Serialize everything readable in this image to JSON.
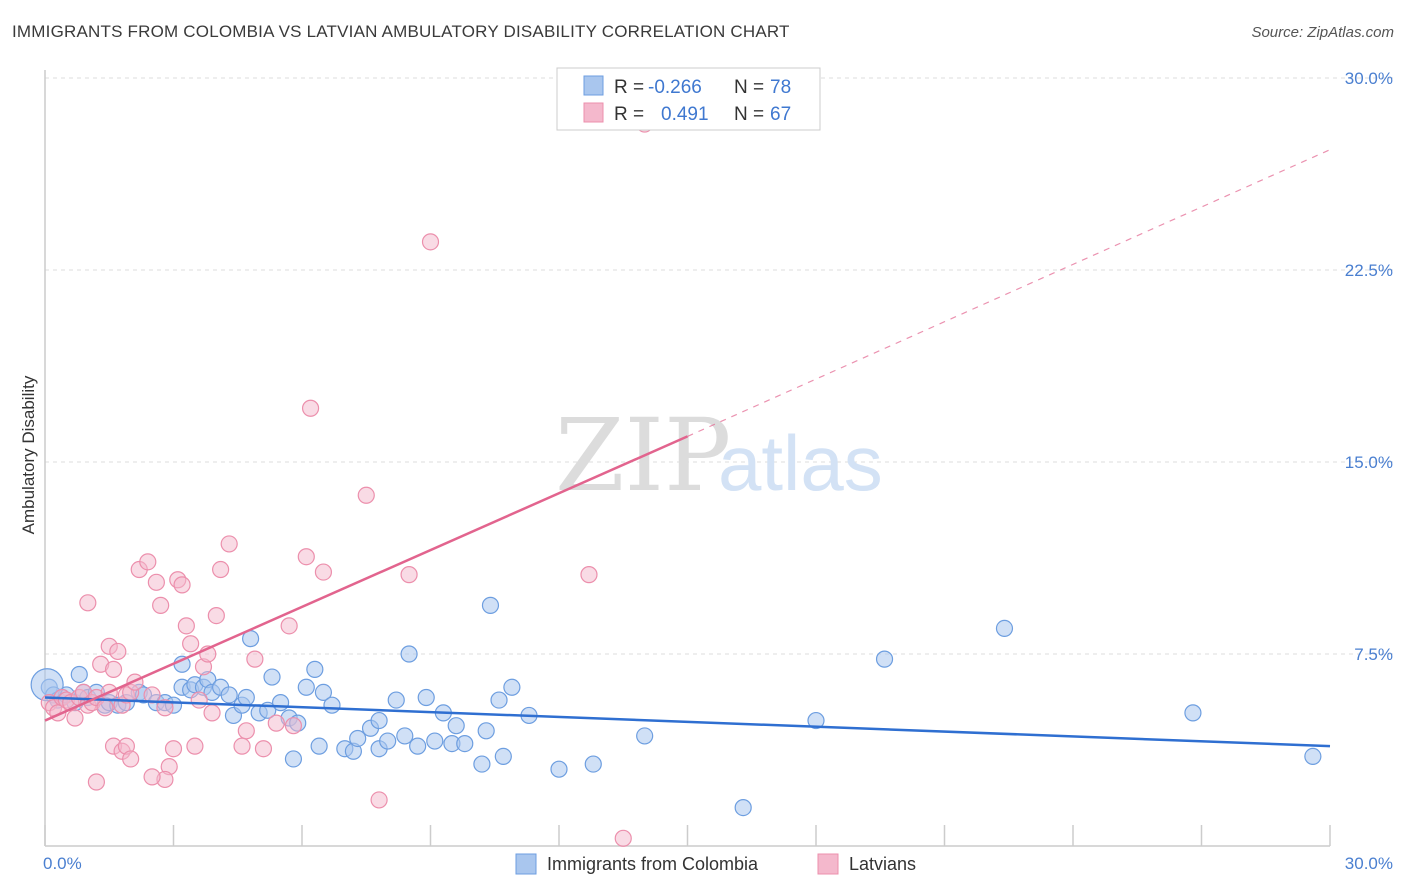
{
  "title": "IMMIGRANTS FROM COLOMBIA VS LATVIAN AMBULATORY DISABILITY CORRELATION CHART",
  "source": "Source: ZipAtlas.com",
  "colors": {
    "blue_fill": "#a9c6ee",
    "blue_stroke": "#6d9ee0",
    "blue_line": "#2f6fd1",
    "pink_fill": "#f4b8cc",
    "pink_stroke": "#ec8fac",
    "pink_line": "#e2648e",
    "tick_text": "#4a7fd0",
    "grid": "#dddddd"
  },
  "chart_data": {
    "type": "scatter",
    "title": "IMMIGRANTS FROM COLOMBIA VS LATVIAN AMBULATORY DISABILITY CORRELATION CHART",
    "xlabel": "",
    "ylabel": "Ambulatory Disability",
    "xlim": [
      0,
      30
    ],
    "ylim": [
      0,
      30
    ],
    "x_ticks": [
      "0.0%",
      "30.0%"
    ],
    "y_ticks": [
      "7.5%",
      "15.0%",
      "22.5%",
      "30.0%"
    ],
    "y_tick_values": [
      7.5,
      15.0,
      22.5,
      30.0
    ],
    "grid": "horizontal dashed",
    "legend_position": "top-center",
    "legend": [
      {
        "r_label": "R =",
        "r_value": "-0.266",
        "n_label": "N =",
        "n_value": "78"
      },
      {
        "r_label": "R =",
        "r_value": "0.491",
        "n_label": "N =",
        "n_value": "67"
      }
    ],
    "watermark": "ZIPatlas",
    "series": [
      {
        "name": "Immigrants from Colombia",
        "color": "#a9c6ee",
        "trend": {
          "x": [
            0,
            30
          ],
          "y": [
            5.8,
            3.9
          ],
          "style": "solid"
        },
        "points": [
          [
            0.1,
            6.2
          ],
          [
            0.2,
            5.9
          ],
          [
            0.3,
            5.7
          ],
          [
            0.4,
            5.8
          ],
          [
            0.5,
            5.9
          ],
          [
            0.7,
            5.6
          ],
          [
            0.8,
            6.7
          ],
          [
            0.9,
            6.0
          ],
          [
            1.0,
            5.8
          ],
          [
            1.2,
            6.0
          ],
          [
            1.4,
            5.5
          ],
          [
            1.5,
            5.6
          ],
          [
            1.7,
            5.5
          ],
          [
            1.9,
            5.6
          ],
          [
            2.2,
            6.0
          ],
          [
            2.3,
            5.9
          ],
          [
            2.6,
            5.6
          ],
          [
            2.8,
            5.6
          ],
          [
            3.0,
            5.5
          ],
          [
            3.2,
            6.2
          ],
          [
            3.2,
            7.1
          ],
          [
            3.4,
            6.1
          ],
          [
            3.5,
            6.3
          ],
          [
            3.7,
            6.2
          ],
          [
            3.8,
            6.5
          ],
          [
            3.9,
            6.0
          ],
          [
            4.1,
            6.2
          ],
          [
            4.3,
            5.9
          ],
          [
            4.4,
            5.1
          ],
          [
            4.6,
            5.5
          ],
          [
            4.7,
            5.8
          ],
          [
            4.8,
            8.1
          ],
          [
            5.0,
            5.2
          ],
          [
            5.2,
            5.3
          ],
          [
            5.3,
            6.6
          ],
          [
            5.5,
            5.6
          ],
          [
            5.7,
            5.0
          ],
          [
            5.8,
            3.4
          ],
          [
            5.9,
            4.8
          ],
          [
            6.1,
            6.2
          ],
          [
            6.3,
            6.9
          ],
          [
            6.5,
            6.0
          ],
          [
            6.7,
            5.5
          ],
          [
            6.4,
            3.9
          ],
          [
            7.0,
            3.8
          ],
          [
            7.2,
            3.7
          ],
          [
            7.3,
            4.2
          ],
          [
            7.6,
            4.6
          ],
          [
            7.8,
            4.9
          ],
          [
            7.8,
            3.8
          ],
          [
            8.0,
            4.1
          ],
          [
            8.2,
            5.7
          ],
          [
            8.4,
            4.3
          ],
          [
            8.5,
            7.5
          ],
          [
            8.7,
            3.9
          ],
          [
            8.9,
            5.8
          ],
          [
            9.1,
            4.1
          ],
          [
            9.3,
            5.2
          ],
          [
            9.5,
            4.0
          ],
          [
            9.6,
            4.7
          ],
          [
            9.8,
            4.0
          ],
          [
            10.2,
            3.2
          ],
          [
            10.3,
            4.5
          ],
          [
            10.4,
            9.4
          ],
          [
            10.6,
            5.7
          ],
          [
            10.7,
            3.5
          ],
          [
            10.9,
            6.2
          ],
          [
            11.3,
            5.1
          ],
          [
            12.0,
            3.0
          ],
          [
            12.8,
            3.2
          ],
          [
            14.0,
            4.3
          ],
          [
            16.3,
            1.5
          ],
          [
            18.0,
            4.9
          ],
          [
            19.6,
            7.3
          ],
          [
            22.4,
            8.5
          ],
          [
            26.8,
            5.2
          ],
          [
            29.6,
            3.5
          ],
          [
            0.05,
            6.3
          ]
        ]
      },
      {
        "name": "Latvians",
        "color": "#f4b8cc",
        "trend": {
          "x": [
            0,
            15
          ],
          "y": [
            4.9,
            16.0
          ],
          "style": "solid",
          "extension_x": [
            15,
            30
          ],
          "extension_y": [
            16.0,
            27.2
          ]
        },
        "points": [
          [
            0.1,
            5.6
          ],
          [
            0.2,
            5.4
          ],
          [
            0.3,
            5.2
          ],
          [
            0.4,
            5.8
          ],
          [
            0.5,
            5.7
          ],
          [
            0.6,
            5.6
          ],
          [
            0.7,
            5.0
          ],
          [
            0.8,
            5.8
          ],
          [
            0.9,
            6.0
          ],
          [
            1.0,
            5.5
          ],
          [
            1.1,
            5.6
          ],
          [
            1.2,
            5.8
          ],
          [
            1.3,
            7.1
          ],
          [
            1.4,
            5.4
          ],
          [
            1.5,
            7.8
          ],
          [
            1.5,
            6.0
          ],
          [
            1.6,
            6.9
          ],
          [
            1.7,
            7.6
          ],
          [
            1.8,
            5.5
          ],
          [
            1.9,
            5.9
          ],
          [
            2.0,
            6.0
          ],
          [
            1.2,
            2.5
          ],
          [
            1.0,
            9.5
          ],
          [
            1.6,
            3.9
          ],
          [
            1.8,
            3.7
          ],
          [
            1.9,
            3.9
          ],
          [
            2.0,
            3.4
          ],
          [
            2.1,
            6.4
          ],
          [
            2.2,
            10.8
          ],
          [
            2.4,
            11.1
          ],
          [
            2.5,
            5.9
          ],
          [
            2.6,
            10.3
          ],
          [
            2.7,
            9.4
          ],
          [
            2.8,
            5.4
          ],
          [
            2.9,
            3.1
          ],
          [
            2.8,
            2.6
          ],
          [
            2.5,
            2.7
          ],
          [
            3.0,
            3.8
          ],
          [
            3.1,
            10.4
          ],
          [
            3.2,
            10.2
          ],
          [
            3.3,
            8.6
          ],
          [
            3.4,
            7.9
          ],
          [
            3.5,
            3.9
          ],
          [
            3.6,
            5.7
          ],
          [
            3.7,
            7.0
          ],
          [
            3.8,
            7.5
          ],
          [
            3.9,
            5.2
          ],
          [
            4.0,
            9.0
          ],
          [
            4.1,
            10.8
          ],
          [
            4.3,
            11.8
          ],
          [
            4.6,
            3.9
          ],
          [
            4.7,
            4.5
          ],
          [
            4.9,
            7.3
          ],
          [
            5.1,
            3.8
          ],
          [
            5.4,
            4.8
          ],
          [
            5.7,
            8.6
          ],
          [
            5.8,
            4.7
          ],
          [
            6.1,
            11.3
          ],
          [
            6.2,
            17.1
          ],
          [
            6.5,
            10.7
          ],
          [
            7.5,
            13.7
          ],
          [
            7.8,
            1.8
          ],
          [
            8.5,
            10.6
          ],
          [
            9.0,
            23.6
          ],
          [
            12.7,
            10.6
          ],
          [
            13.5,
            0.3
          ],
          [
            14.0,
            28.2
          ]
        ]
      }
    ]
  },
  "bottom_legend": [
    {
      "label": "Immigrants from Colombia"
    },
    {
      "label": "Latvians"
    }
  ]
}
